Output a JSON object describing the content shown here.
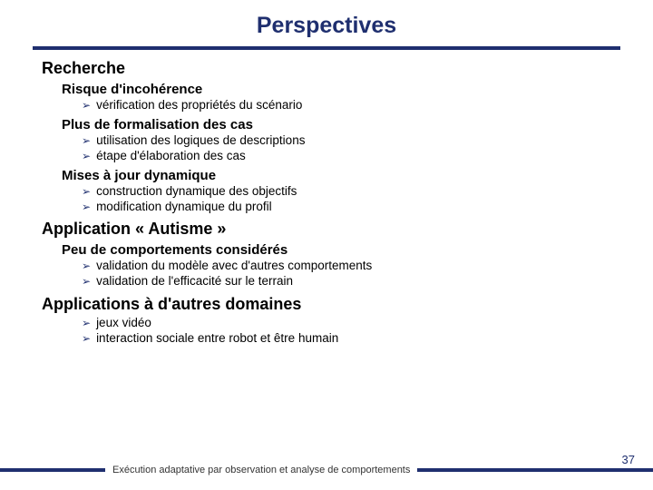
{
  "colors": {
    "accent": "#1f2f6f",
    "text": "#000000",
    "background": "#ffffff"
  },
  "typography": {
    "title_size_pt": 25,
    "h1_size_pt": 18,
    "h2_size_pt": 15,
    "bullet_size_pt": 13.5,
    "footer_size_pt": 11,
    "pagenum_size_pt": 13,
    "font_family": "Verdana"
  },
  "title": "Perspectives",
  "sections": [
    {
      "heading": "Recherche",
      "subsections": [
        {
          "heading": "Risque d'incohérence",
          "bullets": [
            "vérification des propriétés du scénario"
          ]
        },
        {
          "heading": "Plus de formalisation des cas",
          "bullets": [
            "utilisation des logiques de descriptions",
            "étape d'élaboration des cas"
          ]
        },
        {
          "heading": "Mises à jour dynamique",
          "bullets": [
            "construction dynamique des objectifs",
            "modification dynamique du profil"
          ]
        }
      ]
    },
    {
      "heading": "Application « Autisme »",
      "subsections": [
        {
          "heading": "Peu de comportements considérés",
          "bullets": [
            "validation du modèle avec d'autres comportements",
            "validation de l'efficacité sur le terrain"
          ]
        }
      ]
    },
    {
      "heading": "Applications à d'autres domaines",
      "subsections": [
        {
          "heading": null,
          "bullets": [
            "jeux vidéo",
            "interaction sociale entre robot et être humain"
          ]
        }
      ]
    }
  ],
  "footer_text": "Exécution adaptative par observation et analyse de comportements",
  "page_number": "37",
  "bullet_marker": "➢"
}
